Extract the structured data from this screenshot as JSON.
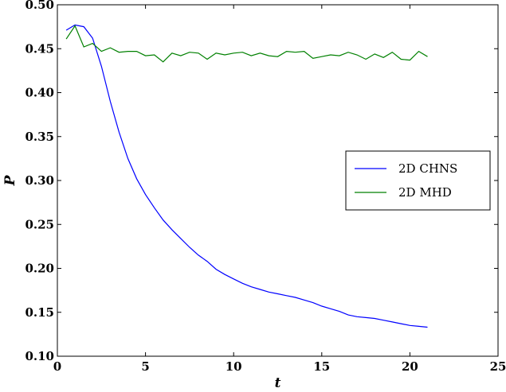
{
  "chart_data": {
    "type": "line",
    "title": "",
    "xlabel": "t",
    "ylabel": "P",
    "xlim": [
      0,
      25
    ],
    "ylim": [
      0.1,
      0.5
    ],
    "xticks": [
      "0",
      "5",
      "10",
      "15",
      "20",
      "25"
    ],
    "yticks": [
      "0.10",
      "0.15",
      "0.20",
      "0.25",
      "0.30",
      "0.35",
      "0.40",
      "0.45",
      "0.50"
    ],
    "grid": false,
    "legend_position": "center-right",
    "series": [
      {
        "name": "2D CHNS",
        "color": "#0000ff",
        "x": [
          0.5,
          1.0,
          1.5,
          2.0,
          2.5,
          3.0,
          3.5,
          4.0,
          4.5,
          5.0,
          5.5,
          6.0,
          6.5,
          7.0,
          7.5,
          8.0,
          8.5,
          9.0,
          9.5,
          10.0,
          10.5,
          11.0,
          11.5,
          12.0,
          12.5,
          13.0,
          13.5,
          14.0,
          14.5,
          15.0,
          15.5,
          16.0,
          16.5,
          17.0,
          17.5,
          18.0,
          18.5,
          19.0,
          19.5,
          20.0,
          20.5,
          21.0
        ],
        "y": [
          0.471,
          0.477,
          0.475,
          0.462,
          0.43,
          0.39,
          0.355,
          0.325,
          0.302,
          0.284,
          0.269,
          0.255,
          0.244,
          0.234,
          0.224,
          0.215,
          0.208,
          0.199,
          0.193,
          0.188,
          0.183,
          0.179,
          0.176,
          0.173,
          0.171,
          0.169,
          0.167,
          0.164,
          0.161,
          0.157,
          0.154,
          0.151,
          0.147,
          0.145,
          0.144,
          0.143,
          0.141,
          0.139,
          0.137,
          0.135,
          0.134,
          0.133
        ]
      },
      {
        "name": "2D MHD",
        "color": "#008000",
        "x": [
          0.5,
          1.0,
          1.5,
          2.0,
          2.5,
          3.0,
          3.5,
          4.0,
          4.5,
          5.0,
          5.5,
          6.0,
          6.5,
          7.0,
          7.5,
          8.0,
          8.5,
          9.0,
          9.5,
          10.0,
          10.5,
          11.0,
          11.5,
          12.0,
          12.5,
          13.0,
          13.5,
          14.0,
          14.5,
          15.0,
          15.5,
          16.0,
          16.5,
          17.0,
          17.5,
          18.0,
          18.5,
          19.0,
          19.5,
          20.0,
          20.5,
          21.0
        ],
        "y": [
          0.461,
          0.476,
          0.452,
          0.456,
          0.447,
          0.451,
          0.446,
          0.447,
          0.447,
          0.442,
          0.443,
          0.435,
          0.445,
          0.442,
          0.446,
          0.445,
          0.438,
          0.445,
          0.443,
          0.445,
          0.446,
          0.442,
          0.445,
          0.442,
          0.441,
          0.447,
          0.446,
          0.447,
          0.439,
          0.441,
          0.443,
          0.442,
          0.446,
          0.443,
          0.438,
          0.444,
          0.44,
          0.446,
          0.438,
          0.437,
          0.447,
          0.441
        ]
      }
    ]
  }
}
